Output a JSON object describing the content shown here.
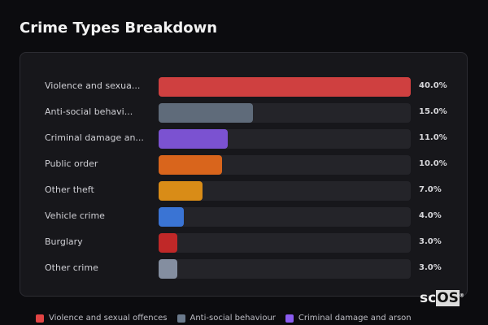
{
  "title": "Crime Types Breakdown",
  "chart_data": {
    "type": "bar",
    "orientation": "horizontal",
    "title": "Crime Types Breakdown",
    "xlim": [
      0,
      40
    ],
    "categories": [
      "Violence and sexua...",
      "Anti-social behavi...",
      "Criminal damage an...",
      "Public order",
      "Other theft",
      "Vehicle crime",
      "Burglary",
      "Other crime"
    ],
    "values": [
      40.0,
      15.0,
      11.0,
      10.0,
      7.0,
      4.0,
      3.0,
      3.0
    ],
    "value_labels": [
      "40.0%",
      "15.0%",
      "11.0%",
      "10.0%",
      "7.0%",
      "4.0%",
      "3.0%",
      "3.0%"
    ],
    "colors": [
      "#cf4040",
      "#5f6b7a",
      "#7b52d1",
      "#d9651c",
      "#d98c17",
      "#3a74d4",
      "#c02828",
      "#848ea0"
    ],
    "legend": [
      {
        "label": "Violence and sexual offences",
        "color": "#e24444"
      },
      {
        "label": "Anti-social behaviour",
        "color": "#6b7a8c"
      },
      {
        "label": "Criminal damage and arson",
        "color": "#8b5cf0"
      }
    ],
    "legend_position": "bottom"
  },
  "logo": {
    "text_a": "sc",
    "text_b": "OS",
    "mark": "®"
  }
}
